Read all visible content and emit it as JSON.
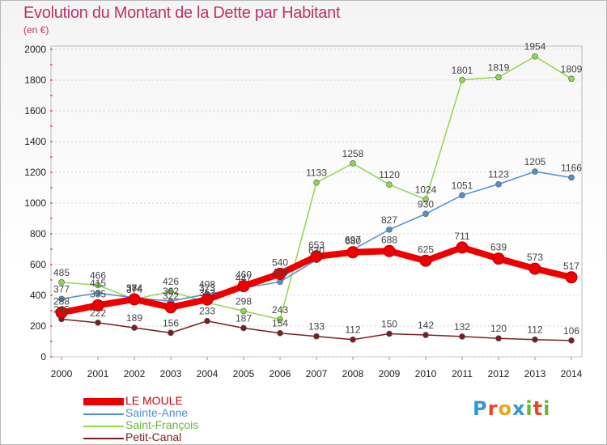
{
  "header": {
    "title": "Evolution du Montant de la Dette par Habitant",
    "unit": "(en €)"
  },
  "brand": {
    "letters": [
      "P",
      "r",
      "o",
      "x",
      "i",
      "t",
      "i"
    ],
    "letter_colors": [
      "#2f9ad6",
      "#e8452a",
      "#f2a31b",
      "#2f9ad6",
      "#6ab538",
      "#e8452a",
      "#6ab538"
    ]
  },
  "chart_data": {
    "type": "line",
    "title": "Evolution du Montant de la Dette par Habitant",
    "subtitle": "(en €)",
    "x": [
      "2000",
      "2001",
      "2002",
      "2003",
      "2004",
      "2005",
      "2006",
      "2007",
      "2008",
      "2009",
      "2010",
      "2011",
      "2012",
      "2013",
      "2014"
    ],
    "ylim": [
      0,
      2000
    ],
    "yticks": [
      "0",
      "200",
      "400",
      "600",
      "800",
      "1000",
      "1200",
      "1400",
      "1600",
      "1800",
      "2000"
    ],
    "grid": true,
    "legend_position": "bottom-left",
    "series": [
      {
        "name": "LE MOULE",
        "color": "#ee0000",
        "values": [
          288,
          335,
          374,
          322,
          373,
          460,
          540,
          653,
          680,
          688,
          625,
          711,
          639,
          573,
          517
        ],
        "labels": [
          "288",
          "335",
          "374",
          "322",
          "373",
          "460",
          "540",
          "653",
          "680",
          "688",
          "625",
          "711",
          "639",
          "573",
          "517"
        ]
      },
      {
        "name": "Sainte-Anne",
        "color": "#4f90d0",
        "values": [
          377,
          415,
          384,
          362,
          408,
          447,
          488,
          630,
          697,
          827,
          930,
          1051,
          1123,
          1205,
          1166
        ],
        "labels": [
          "377",
          "415",
          "384",
          "362",
          "408",
          "447",
          "488",
          "630",
          "697",
          "827",
          "930",
          "1051",
          "1123",
          "1205",
          "1166"
        ]
      },
      {
        "name": "Saint-François",
        "color": "#8ed84a",
        "values": [
          485,
          466,
          374,
          426,
          353,
          298,
          243,
          1133,
          1258,
          1120,
          1024,
          1801,
          1819,
          1954,
          1809
        ],
        "labels": [
          "485",
          "466",
          "374",
          "426",
          "353",
          "298",
          "243",
          "1133",
          "1258",
          "1120",
          "1024",
          "1801",
          "1819",
          "1954",
          "1809"
        ]
      },
      {
        "name": "Petit-Canal",
        "color": "#7a1f1f",
        "values": [
          245,
          222,
          189,
          156,
          233,
          187,
          154,
          133,
          112,
          150,
          142,
          132,
          120,
          112,
          106
        ],
        "labels": [
          "245",
          "222",
          "189",
          "156",
          "233",
          "187",
          "154",
          "133",
          "112",
          "150",
          "142",
          "132",
          "120",
          "112",
          "106"
        ]
      }
    ]
  }
}
